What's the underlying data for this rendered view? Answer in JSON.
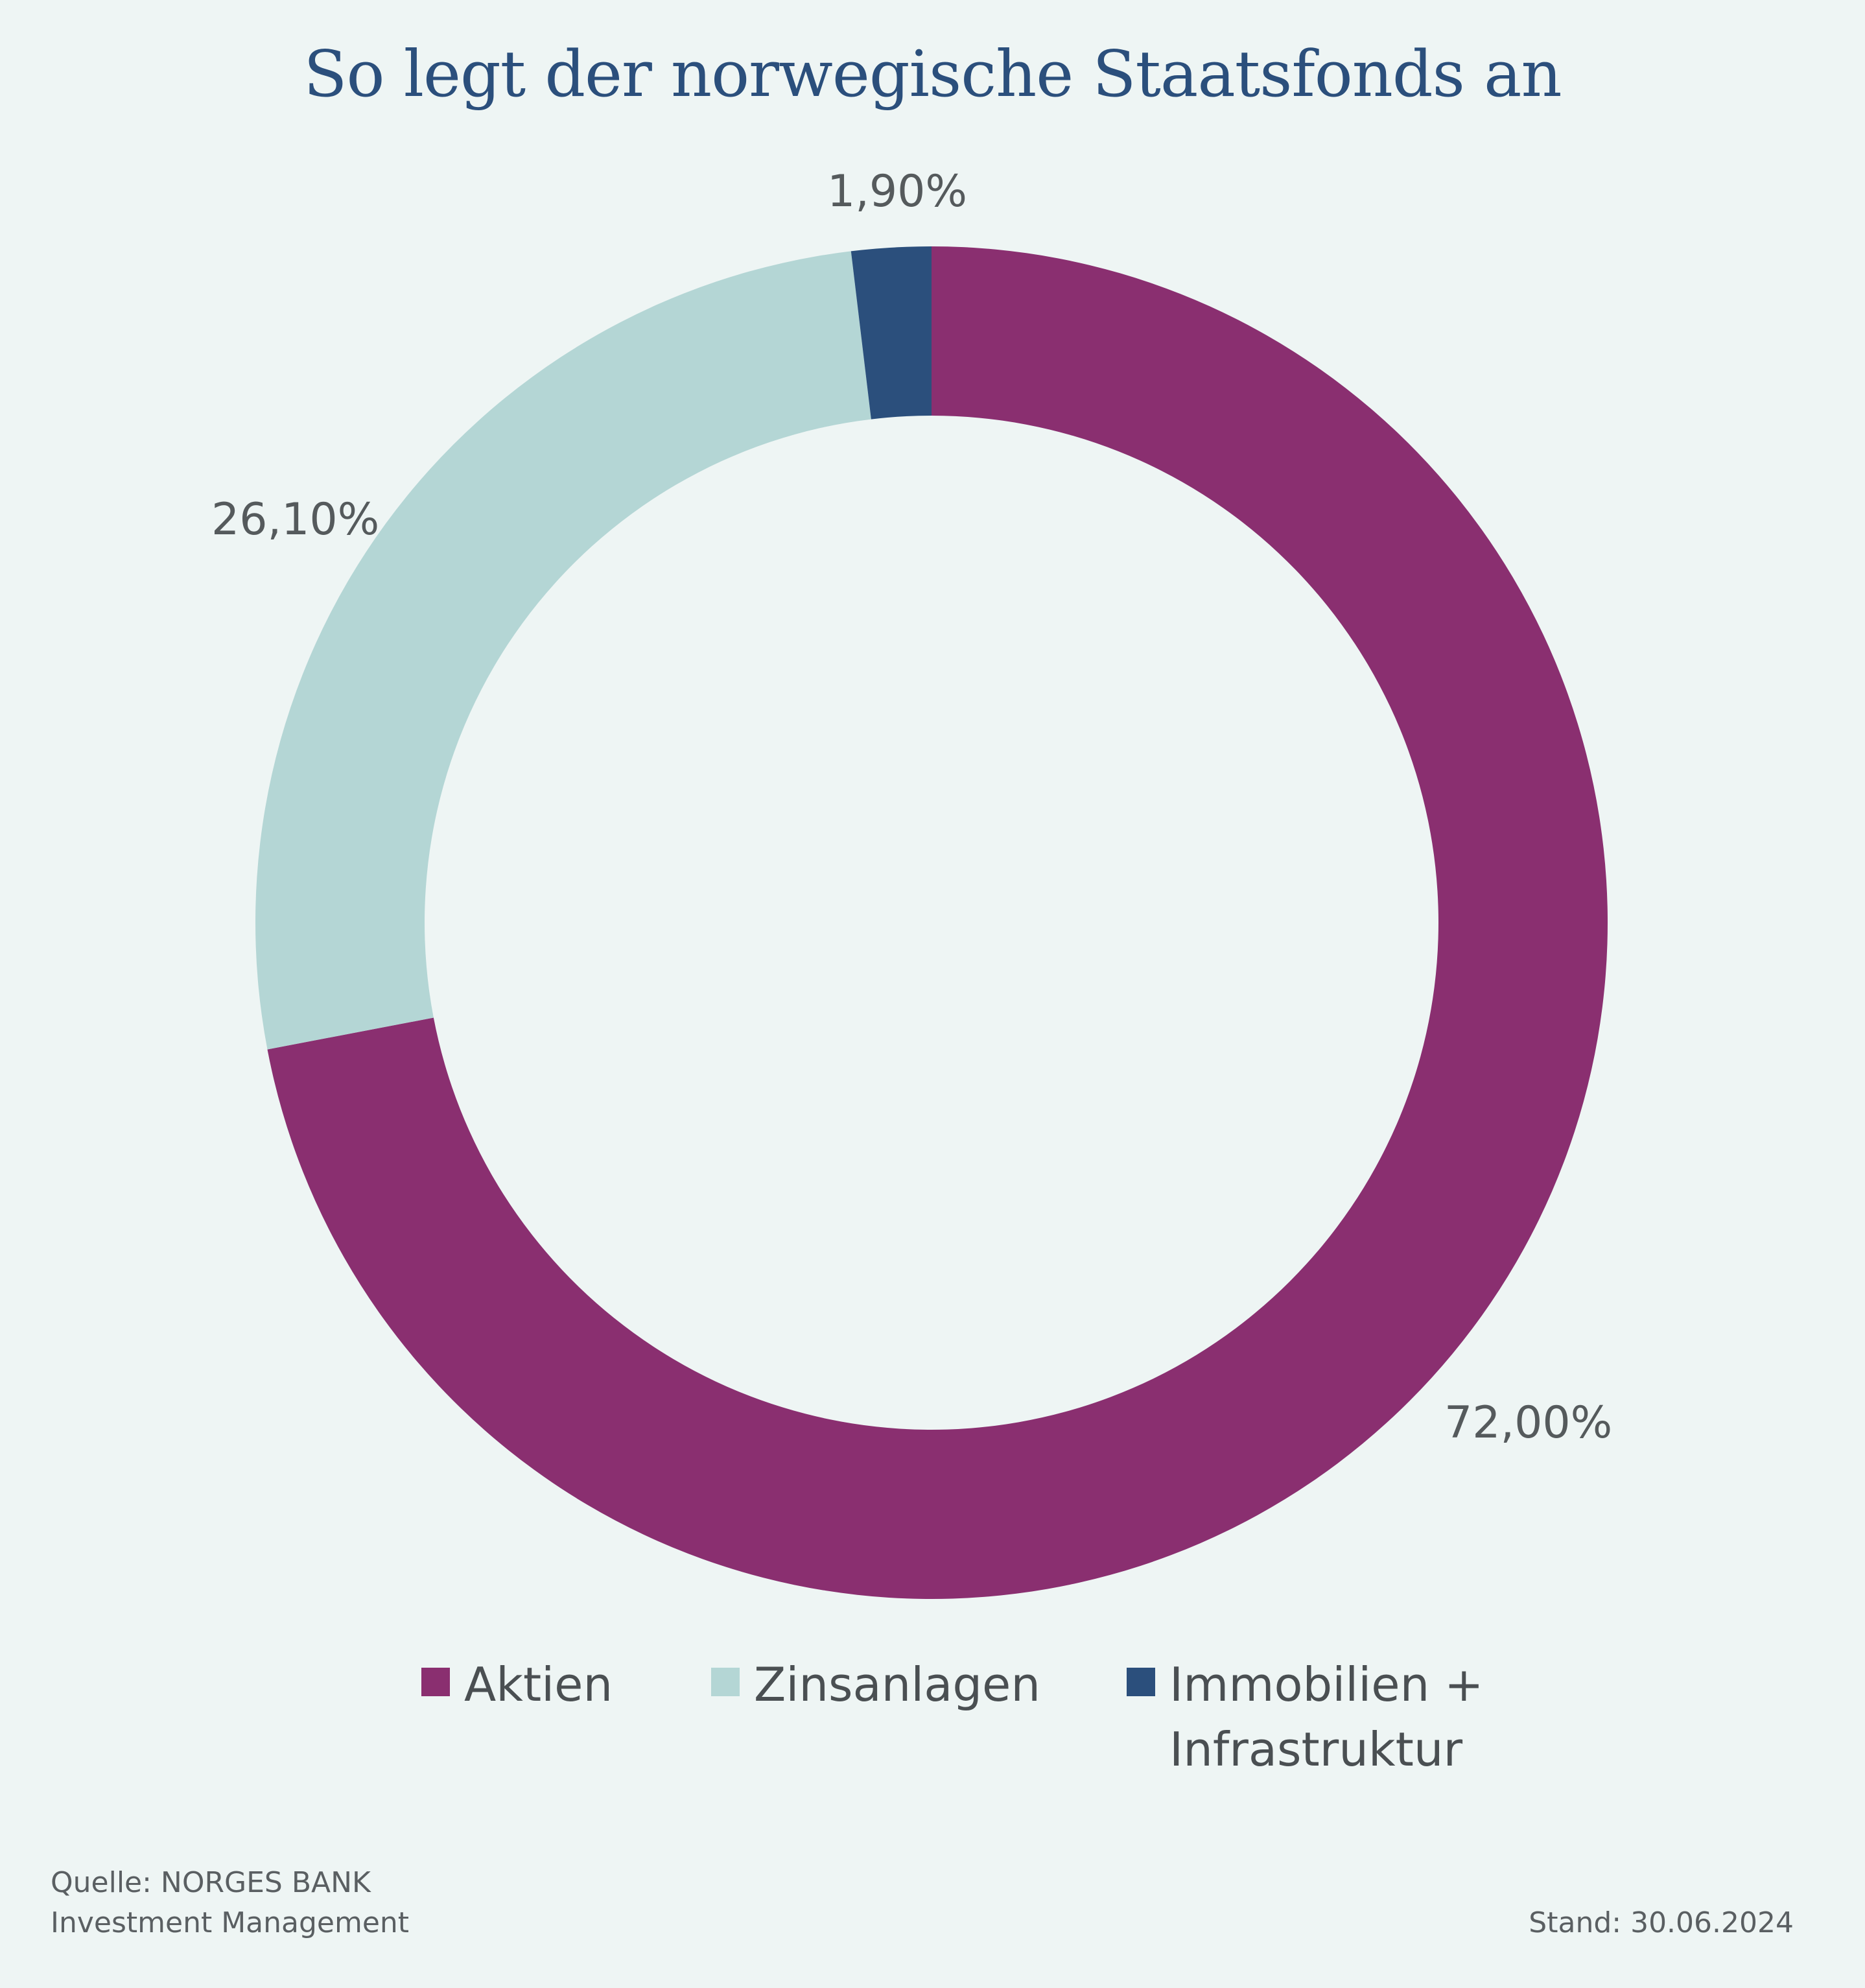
{
  "title": "So legt der norwegische Staatsfonds an",
  "colors": {
    "background": "#eef5f4",
    "title": "#2b4f7c",
    "aktien": "#8a2f70",
    "zinsanlagen": "#b4d6d5",
    "immobilien": "#2b4f7c"
  },
  "chart_data": {
    "type": "pie",
    "donut": true,
    "slices": [
      {
        "name": "Aktien",
        "value": 72.0,
        "label": "72,00%",
        "color": "#8a2f70"
      },
      {
        "name": "Zinsanlagen",
        "value": 26.1,
        "label": "26,10%",
        "color": "#b4d6d5"
      },
      {
        "name": "Immobilien + Infrastruktur",
        "value": 1.9,
        "label": "1,90%",
        "color": "#2b4f7c"
      }
    ],
    "legend": {
      "placement": "bottom",
      "entries": [
        {
          "line1": "Aktien",
          "line2": ""
        },
        {
          "line1": "Zinsanlagen",
          "line2": ""
        },
        {
          "line1": "Immobilien +",
          "line2": "Infrastruktur"
        }
      ]
    }
  },
  "footer": {
    "source_line1": "Quelle: NORGES BANK",
    "source_line2": "Investment Management",
    "date": "Stand: 30.06.2024"
  }
}
